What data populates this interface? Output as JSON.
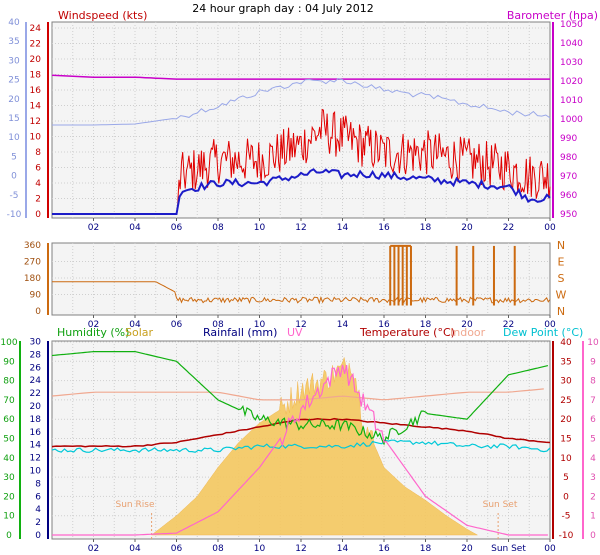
{
  "title": "24 hour graph day : 04 July 2012",
  "colors": {
    "windspeed": "#e00000",
    "average": "#1c1cc8",
    "barometer": "#c800c8",
    "gust_axis": "#9aa8e8",
    "direction": "#cc6a10",
    "humidity": "#10b010",
    "solar": "#f5c860",
    "rainfall": "#000080",
    "uv": "#ff66cc",
    "temperature": "#b00000",
    "indoor": "#f0a890",
    "dewpoint": "#00c8d8"
  },
  "x_tick_labels": [
    "02",
    "04",
    "06",
    "08",
    "10",
    "12",
    "14",
    "16",
    "18",
    "20",
    "22",
    "00"
  ],
  "x_tick_labels_bottom": [
    "02",
    "04",
    "06",
    "08",
    "10",
    "12",
    "14",
    "16",
    "18",
    "20",
    "Sun Set",
    "00"
  ],
  "panel1": {
    "title_left": "Windspeed (kts)",
    "title_right": "Barometer (hpa)",
    "left_axis_outer": [
      "-10",
      "-5",
      "0",
      "5",
      "10",
      "15",
      "20",
      "25",
      "30",
      "35",
      "40"
    ],
    "left_axis_inner": [
      "0",
      "2",
      "4",
      "6",
      "8",
      "10",
      "12",
      "14",
      "16",
      "18",
      "20",
      "22",
      "24"
    ],
    "right_axis": [
      "950",
      "960",
      "970",
      "980",
      "990",
      "1000",
      "1010",
      "1020",
      "1030",
      "1040",
      "1050"
    ]
  },
  "panel2": {
    "left_axis": [
      "0",
      "90",
      "180",
      "270",
      "360"
    ],
    "right_axis": [
      "N",
      "W",
      "S",
      "E",
      "N"
    ]
  },
  "panel3": {
    "labels": {
      "humidity": "Humidity (%)",
      "solar": "Solar",
      "rainfall": "Rainfall (mm)",
      "uv": "UV",
      "temperature": "Temperature (°C)",
      "indoor": "Indoor",
      "dewpoint": "Dew Point (°C)"
    },
    "annotations": {
      "sunrise": "Sun Rise",
      "sunset": "Sun Set"
    },
    "humidity_axis": [
      "0",
      "10",
      "20",
      "30",
      "40",
      "50",
      "60",
      "70",
      "80",
      "90",
      "100"
    ],
    "rain_axis": [
      "0",
      "2",
      "4",
      "6",
      "8",
      "10",
      "12",
      "14",
      "16",
      "18",
      "20",
      "22",
      "24",
      "26",
      "28",
      "30"
    ],
    "temp_axis": [
      "-10",
      "-5",
      "0",
      "5",
      "10",
      "15",
      "20",
      "25",
      "30",
      "35",
      "40"
    ],
    "uv_axis": [
      "0",
      "1",
      "2",
      "3",
      "4",
      "5",
      "6",
      "7",
      "8",
      "9",
      "10"
    ]
  },
  "chart_data": [
    {
      "type": "line",
      "title": "Windspeed (kts)",
      "x": [
        0,
        2,
        4,
        6,
        6.2,
        8,
        10,
        12,
        13,
        14,
        15,
        16,
        18,
        20,
        22,
        23,
        24
      ],
      "series": [
        {
          "name": "Windspeed (kts)",
          "values": [
            0,
            0,
            0,
            0,
            4,
            6,
            6,
            8,
            10,
            9,
            8,
            7,
            7,
            6,
            5,
            4,
            4
          ]
        },
        {
          "name": "Barometer (hpa)",
          "values": [
            1023,
            1022,
            1022,
            1021,
            1021,
            1021,
            1021,
            1021,
            1021,
            1021,
            1021,
            1021,
            1021,
            1021,
            1021,
            1021,
            1021
          ]
        }
      ],
      "ylim": [
        0,
        24
      ]
    },
    {
      "type": "line",
      "x": [
        0,
        2,
        4,
        6,
        8,
        10,
        12,
        14,
        16,
        18,
        20,
        22,
        24
      ],
      "series": [
        {
          "name": "Wind direction",
          "values": [
            160,
            160,
            160,
            160,
            60,
            55,
            50,
            50,
            60,
            60,
            60,
            55,
            55
          ]
        }
      ],
      "ylim": [
        0,
        360
      ]
    },
    {
      "type": "line",
      "x": [
        0,
        2,
        4,
        6,
        8,
        10,
        12,
        14,
        16,
        18,
        20,
        22,
        24
      ],
      "series": [
        {
          "name": "Humidity (%)",
          "values": [
            93,
            95,
            95,
            90,
            70,
            60,
            57,
            57,
            50,
            63,
            60,
            83,
            88
          ]
        },
        {
          "name": "Temperature (°C)",
          "values": [
            13,
            13,
            13,
            14,
            16,
            18,
            20,
            20,
            19,
            18,
            17,
            15,
            14
          ]
        },
        {
          "name": "Dew Point (°C)",
          "values": [
            12,
            12,
            12,
            12,
            12,
            13,
            13,
            13,
            14,
            14,
            13,
            13,
            12
          ]
        },
        {
          "name": "Indoor",
          "values": [
            26,
            27,
            27,
            27,
            27,
            25,
            25,
            26,
            25,
            26,
            27,
            27,
            28
          ]
        },
        {
          "name": "UV",
          "values": [
            0,
            0,
            0,
            0.1,
            1.2,
            3.5,
            6.5,
            8.8,
            5,
            2,
            0.5,
            0,
            0
          ]
        },
        {
          "name": "Solar",
          "values": [
            0,
            0,
            0,
            0,
            3,
            6,
            8,
            9,
            5,
            3,
            0.5,
            0,
            0
          ]
        }
      ]
    }
  ]
}
